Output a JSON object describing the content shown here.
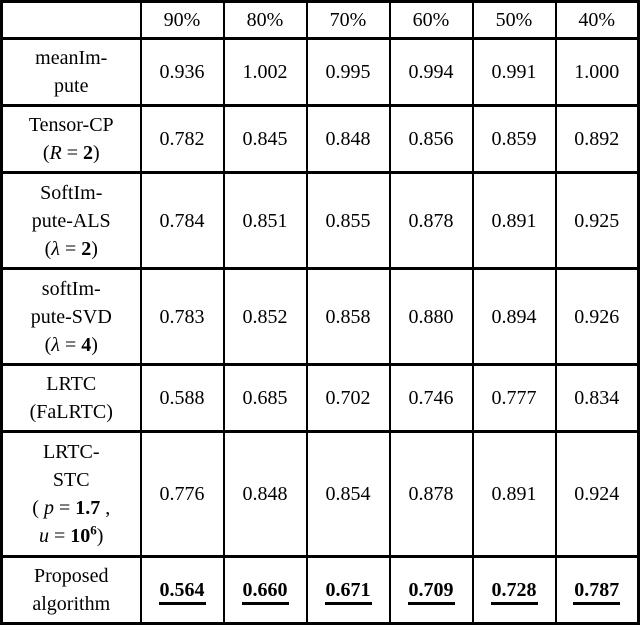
{
  "table": {
    "header": [
      "",
      "90%",
      "80%",
      "70%",
      "60%",
      "50%",
      "40%"
    ],
    "rows": [
      {
        "name": "meanimpute",
        "label_lines": [
          [
            {
              "text": "meanIm-"
            }
          ],
          [
            {
              "text": "pute"
            }
          ]
        ],
        "values": [
          "0.936",
          "1.002",
          "0.995",
          "0.994",
          "0.991",
          "1.000"
        ],
        "emphasis": false
      },
      {
        "name": "tensor-cp",
        "label_lines": [
          [
            {
              "text": "Tensor-CP"
            }
          ],
          [
            {
              "text": "("
            },
            {
              "text": "R",
              "italic": true
            },
            {
              "text": " = "
            },
            {
              "text": "2",
              "bold": true
            },
            {
              "text": ")"
            }
          ]
        ],
        "values": [
          "0.782",
          "0.845",
          "0.848",
          "0.856",
          "0.859",
          "0.892"
        ],
        "emphasis": false
      },
      {
        "name": "softimpute-als",
        "label_lines": [
          [
            {
              "text": "SoftIm-"
            }
          ],
          [
            {
              "text": "pute-ALS"
            }
          ],
          [
            {
              "text": "("
            },
            {
              "text": "λ",
              "italic": true
            },
            {
              "text": " = "
            },
            {
              "text": "2",
              "bold": true
            },
            {
              "text": ")"
            }
          ]
        ],
        "values": [
          "0.784",
          "0.851",
          "0.855",
          "0.878",
          "0.891",
          "0.925"
        ],
        "emphasis": false
      },
      {
        "name": "softimpute-svd",
        "label_lines": [
          [
            {
              "text": "softIm-"
            }
          ],
          [
            {
              "text": "pute-SVD"
            }
          ],
          [
            {
              "text": "("
            },
            {
              "text": "λ",
              "italic": true
            },
            {
              "text": " = "
            },
            {
              "text": "4",
              "bold": true
            },
            {
              "text": ")"
            }
          ]
        ],
        "values": [
          "0.783",
          "0.852",
          "0.858",
          "0.880",
          "0.894",
          "0.926"
        ],
        "emphasis": false
      },
      {
        "name": "lrtc-falrtc",
        "label_lines": [
          [
            {
              "text": "LRTC"
            }
          ],
          [
            {
              "text": "(FaLRTC)"
            }
          ]
        ],
        "values": [
          "0.588",
          "0.685",
          "0.702",
          "0.746",
          "0.777",
          "0.834"
        ],
        "emphasis": false
      },
      {
        "name": "lrtc-stc",
        "label_lines": [
          [
            {
              "text": "LRTC-"
            }
          ],
          [
            {
              "text": "STC"
            }
          ],
          [
            {
              "text": "( "
            },
            {
              "text": "p",
              "italic": true
            },
            {
              "text": " = "
            },
            {
              "text": "1.7",
              "bold": true
            },
            {
              "text": " ,"
            }
          ],
          [
            {
              "text": "u",
              "italic": true
            },
            {
              "text": " = "
            },
            {
              "text": "10",
              "bold": true
            },
            {
              "text": "6",
              "bold": true,
              "sup": true
            },
            {
              "text": ")"
            }
          ]
        ],
        "values": [
          "0.776",
          "0.848",
          "0.854",
          "0.878",
          "0.891",
          "0.924"
        ],
        "emphasis": false
      },
      {
        "name": "proposed-algorithm",
        "label_lines": [
          [
            {
              "text": "Proposed"
            }
          ],
          [
            {
              "text": "algorithm"
            }
          ]
        ],
        "values": [
          "0.564",
          "0.660",
          "0.671",
          "0.709",
          "0.728",
          "0.787"
        ],
        "emphasis": true
      }
    ]
  },
  "colors": {
    "border": "#000000",
    "text": "#000000",
    "background": "#ffffff"
  }
}
